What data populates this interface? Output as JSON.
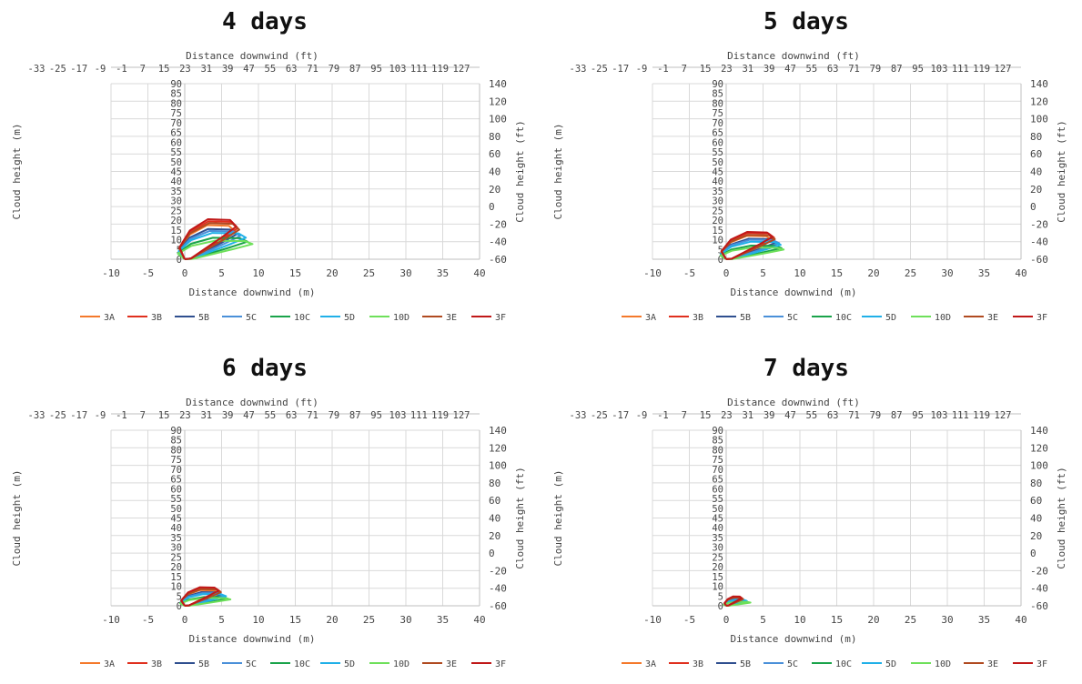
{
  "chart_data": [
    {
      "type": "line",
      "title": "4 days",
      "xlabel": "Distance downwind (m)",
      "x2label": "Distance downwind (ft)",
      "ylabel": "Cloud height (m)",
      "y2label": "Cloud height (ft)",
      "xlim": [
        -10,
        40
      ],
      "ylim": [
        0,
        90
      ],
      "y2lim": [
        -60,
        140
      ],
      "x_ticks": [
        -10,
        -5,
        0,
        5,
        10,
        15,
        20,
        25,
        30,
        35,
        40
      ],
      "y_ticks": [
        0,
        5,
        10,
        15,
        20,
        25,
        30,
        35,
        40,
        45,
        50,
        55,
        60,
        65,
        70,
        75,
        80,
        85,
        90
      ],
      "x2_ticks": [
        -33,
        -25,
        -17,
        -9,
        -1,
        7,
        15,
        23,
        31,
        39,
        47,
        55,
        63,
        71,
        79,
        87,
        95,
        103,
        111,
        119,
        127
      ],
      "y2_ticks": [
        -60,
        -40,
        -20,
        0,
        20,
        40,
        60,
        80,
        100,
        120,
        140
      ],
      "grid": true,
      "legend_position": "bottom",
      "series": [
        {
          "name": "3A",
          "color": "#f4792b",
          "x_max": 6.8,
          "y_max": 17.5
        },
        {
          "name": "3B",
          "color": "#e0301e",
          "x_max": 7.2,
          "y_max": 19.5
        },
        {
          "name": "5B",
          "color": "#2f4f8f",
          "x_max": 7.0,
          "y_max": 15.5
        },
        {
          "name": "5C",
          "color": "#4a90d9",
          "x_max": 7.5,
          "y_max": 14.5
        },
        {
          "name": "10C",
          "color": "#1aa34a",
          "x_max": 8.5,
          "y_max": 11.0
        },
        {
          "name": "5D",
          "color": "#20b0e8",
          "x_max": 8.3,
          "y_max": 13.5
        },
        {
          "name": "10D",
          "color": "#6ee05a",
          "x_max": 9.2,
          "y_max": 9.5
        },
        {
          "name": "3E",
          "color": "#b04a20",
          "x_max": 7.4,
          "y_max": 18.5
        },
        {
          "name": "3F",
          "color": "#c01818",
          "x_max": 7.0,
          "y_max": 20.5
        }
      ]
    },
    {
      "type": "line",
      "title": "5 days",
      "xlabel": "Distance downwind (m)",
      "x2label": "Distance downwind (ft)",
      "ylabel": "Cloud height (m)",
      "y2label": "Cloud height (ft)",
      "xlim": [
        -10,
        40
      ],
      "ylim": [
        0,
        90
      ],
      "y2lim": [
        -60,
        140
      ],
      "x_ticks": [
        -10,
        -5,
        0,
        5,
        10,
        15,
        20,
        25,
        30,
        35,
        40
      ],
      "y_ticks": [
        0,
        5,
        10,
        15,
        20,
        25,
        30,
        35,
        40,
        45,
        50,
        55,
        60,
        65,
        70,
        75,
        80,
        85,
        90
      ],
      "x2_ticks": [
        -33,
        -25,
        -17,
        -9,
        -1,
        7,
        15,
        23,
        31,
        39,
        47,
        55,
        63,
        71,
        79,
        87,
        95,
        103,
        111,
        119,
        127
      ],
      "y2_ticks": [
        -60,
        -40,
        -20,
        0,
        20,
        40,
        60,
        80,
        100,
        120,
        140
      ],
      "grid": true,
      "legend_position": "bottom",
      "series": [
        {
          "name": "3A",
          "color": "#f4792b",
          "x_max": 6.2,
          "y_max": 12.0
        },
        {
          "name": "3B",
          "color": "#e0301e",
          "x_max": 6.5,
          "y_max": 13.5
        },
        {
          "name": "5B",
          "color": "#2f4f8f",
          "x_max": 6.8,
          "y_max": 10.5
        },
        {
          "name": "5C",
          "color": "#4a90d9",
          "x_max": 7.2,
          "y_max": 10.0
        },
        {
          "name": "10C",
          "color": "#1aa34a",
          "x_max": 7.5,
          "y_max": 7.0
        },
        {
          "name": "5D",
          "color": "#20b0e8",
          "x_max": 7.4,
          "y_max": 9.0
        },
        {
          "name": "10D",
          "color": "#6ee05a",
          "x_max": 7.8,
          "y_max": 6.0
        },
        {
          "name": "3E",
          "color": "#b04a20",
          "x_max": 6.6,
          "y_max": 12.5
        },
        {
          "name": "3F",
          "color": "#c01818",
          "x_max": 6.3,
          "y_max": 14.0
        }
      ]
    },
    {
      "type": "line",
      "title": "6 days",
      "xlabel": "Distance downwind (m)",
      "x2label": "Distance downwind (ft)",
      "ylabel": "Cloud height (m)",
      "y2label": "Cloud height (ft)",
      "xlim": [
        -10,
        40
      ],
      "ylim": [
        0,
        90
      ],
      "y2lim": [
        -60,
        140
      ],
      "x_ticks": [
        -10,
        -5,
        0,
        5,
        10,
        15,
        20,
        25,
        30,
        35,
        40
      ],
      "y_ticks": [
        0,
        5,
        10,
        15,
        20,
        25,
        30,
        35,
        40,
        45,
        50,
        55,
        60,
        65,
        70,
        75,
        80,
        85,
        90
      ],
      "x2_ticks": [
        -33,
        -25,
        -17,
        -9,
        -1,
        7,
        15,
        23,
        31,
        39,
        47,
        55,
        63,
        71,
        79,
        87,
        95,
        103,
        111,
        119,
        127
      ],
      "y2_ticks": [
        -60,
        -40,
        -20,
        0,
        20,
        40,
        60,
        80,
        100,
        120,
        140
      ],
      "grid": true,
      "legend_position": "bottom",
      "series": [
        {
          "name": "3A",
          "color": "#f4792b",
          "x_max": 4.5,
          "y_max": 8.0
        },
        {
          "name": "3B",
          "color": "#e0301e",
          "x_max": 4.8,
          "y_max": 9.0
        },
        {
          "name": "5B",
          "color": "#2f4f8f",
          "x_max": 5.0,
          "y_max": 7.0
        },
        {
          "name": "5C",
          "color": "#4a90d9",
          "x_max": 5.3,
          "y_max": 6.5
        },
        {
          "name": "10C",
          "color": "#1aa34a",
          "x_max": 5.8,
          "y_max": 4.5
        },
        {
          "name": "5D",
          "color": "#20b0e8",
          "x_max": 5.6,
          "y_max": 6.0
        },
        {
          "name": "10D",
          "color": "#6ee05a",
          "x_max": 6.2,
          "y_max": 4.0
        },
        {
          "name": "3E",
          "color": "#b04a20",
          "x_max": 4.9,
          "y_max": 8.5
        },
        {
          "name": "3F",
          "color": "#c01818",
          "x_max": 4.6,
          "y_max": 9.5
        }
      ]
    },
    {
      "type": "line",
      "title": "7 days",
      "xlabel": "Distance downwind (m)",
      "x2label": "Distance downwind (ft)",
      "ylabel": "Cloud height (m)",
      "y2label": "Cloud height (ft)",
      "xlim": [
        -10,
        40
      ],
      "ylim": [
        0,
        90
      ],
      "y2lim": [
        -60,
        140
      ],
      "x_ticks": [
        -10,
        -5,
        0,
        5,
        10,
        15,
        20,
        25,
        30,
        35,
        40
      ],
      "y_ticks": [
        0,
        5,
        10,
        15,
        20,
        25,
        30,
        35,
        40,
        45,
        50,
        55,
        60,
        65,
        70,
        75,
        80,
        85,
        90
      ],
      "x2_ticks": [
        -33,
        -25,
        -17,
        -9,
        -1,
        7,
        15,
        23,
        31,
        39,
        47,
        55,
        63,
        71,
        79,
        87,
        95,
        103,
        111,
        119,
        127
      ],
      "y2_ticks": [
        -60,
        -40,
        -20,
        0,
        20,
        40,
        60,
        80,
        100,
        120,
        140
      ],
      "grid": true,
      "legend_position": "bottom",
      "series": [
        {
          "name": "3A",
          "color": "#f4792b",
          "x_max": 2.0,
          "y_max": 4.0
        },
        {
          "name": "3B",
          "color": "#e0301e",
          "x_max": 2.2,
          "y_max": 4.5
        },
        {
          "name": "5B",
          "color": "#2f4f8f",
          "x_max": 2.4,
          "y_max": 3.5
        },
        {
          "name": "5C",
          "color": "#4a90d9",
          "x_max": 2.6,
          "y_max": 3.2
        },
        {
          "name": "10C",
          "color": "#1aa34a",
          "x_max": 3.0,
          "y_max": 2.2
        },
        {
          "name": "5D",
          "color": "#20b0e8",
          "x_max": 2.8,
          "y_max": 3.0
        },
        {
          "name": "10D",
          "color": "#6ee05a",
          "x_max": 3.3,
          "y_max": 2.0
        },
        {
          "name": "3E",
          "color": "#b04a20",
          "x_max": 2.3,
          "y_max": 4.2
        },
        {
          "name": "3F",
          "color": "#c01818",
          "x_max": 2.1,
          "y_max": 4.8
        }
      ]
    }
  ]
}
